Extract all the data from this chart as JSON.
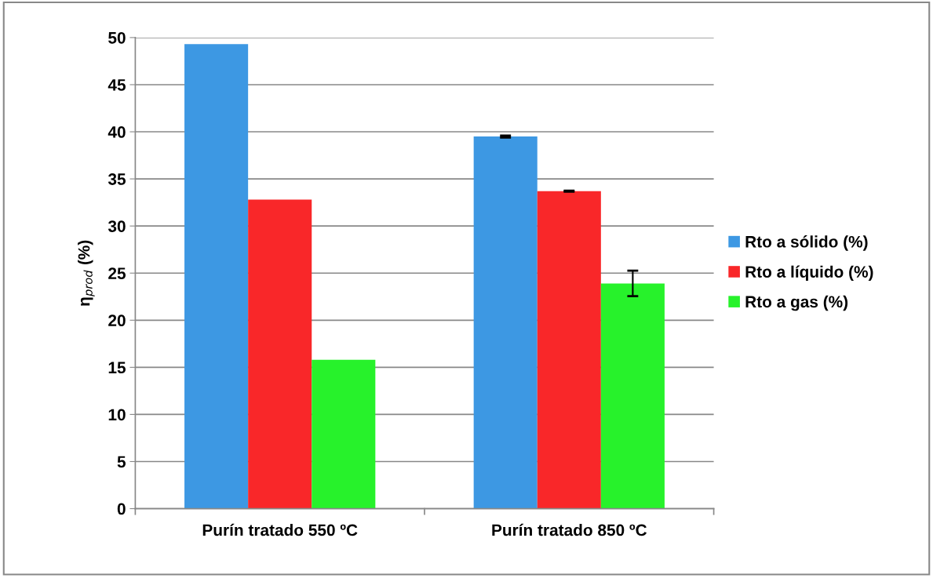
{
  "chart_data": {
    "type": "bar",
    "ylabel": "η$_{prod}$ (%)",
    "categories": [
      "Purín tratado 550 ºC",
      "Purín tratado 850 ºC"
    ],
    "series": [
      {
        "name": "Rto a sólido (%)",
        "color": "#3d98e3",
        "values": [
          49.3,
          39.5
        ],
        "errors": [
          null,
          0.1
        ]
      },
      {
        "name": "Rto a líquido (%)",
        "color": "#f92729",
        "values": [
          32.8,
          33.7
        ],
        "errors": [
          null,
          0.05
        ]
      },
      {
        "name": "Rto a gas (%)",
        "color": "#27f22b",
        "values": [
          15.8,
          23.9
        ],
        "errors": [
          null,
          1.35
        ]
      }
    ],
    "ylim": [
      0,
      50
    ],
    "yticks": [
      0,
      5,
      10,
      15,
      20,
      25,
      30,
      35,
      40,
      45,
      50
    ],
    "grid": "y",
    "legend": "right"
  }
}
